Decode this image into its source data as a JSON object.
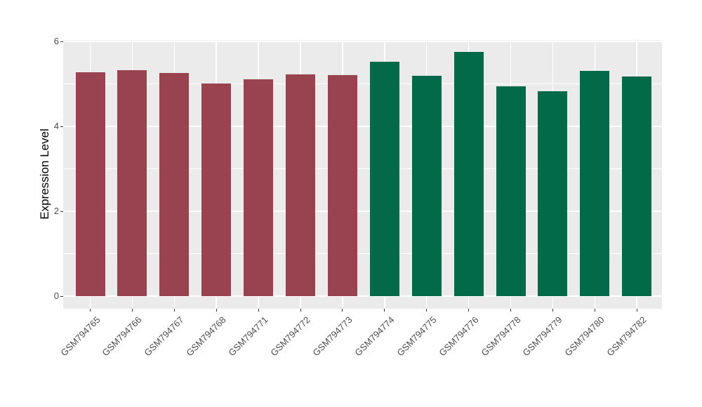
{
  "chart_data": {
    "type": "bar",
    "title": "",
    "xlabel": "",
    "ylabel": "Expression Level",
    "categories": [
      "GSM794765",
      "GSM794766",
      "GSM794767",
      "GSM794768",
      "GSM794771",
      "GSM794772",
      "GSM794773",
      "GSM794774",
      "GSM794775",
      "GSM794776",
      "GSM794778",
      "GSM794779",
      "GSM794780",
      "GSM794782"
    ],
    "values": [
      5.27,
      5.32,
      5.26,
      5.01,
      5.11,
      5.22,
      5.21,
      5.52,
      5.19,
      5.75,
      4.95,
      4.83,
      5.3,
      5.17
    ],
    "bar_colors": [
      "#994350",
      "#994350",
      "#994350",
      "#994350",
      "#994350",
      "#994350",
      "#994350",
      "#026A48",
      "#026A48",
      "#026A48",
      "#026A48",
      "#026A48",
      "#026A48",
      "#026A48"
    ],
    "group_colors": {
      "maroon": "#994350",
      "green": "#026A48"
    },
    "y_ticks": [
      0,
      2,
      4,
      6
    ],
    "y_tick_labels": [
      "0",
      "2",
      "4",
      "6"
    ],
    "y_minor_ticks": [
      1,
      3,
      5
    ],
    "ylim": [
      0,
      6
    ],
    "grid": true,
    "legend_position": "none",
    "panel_bg": "#EBEBEB",
    "grid_color": "#FFFFFF",
    "tick_mark_color": "#333333",
    "tick_label_color": "#4D4D4D",
    "axis_title_color": "#000000"
  }
}
